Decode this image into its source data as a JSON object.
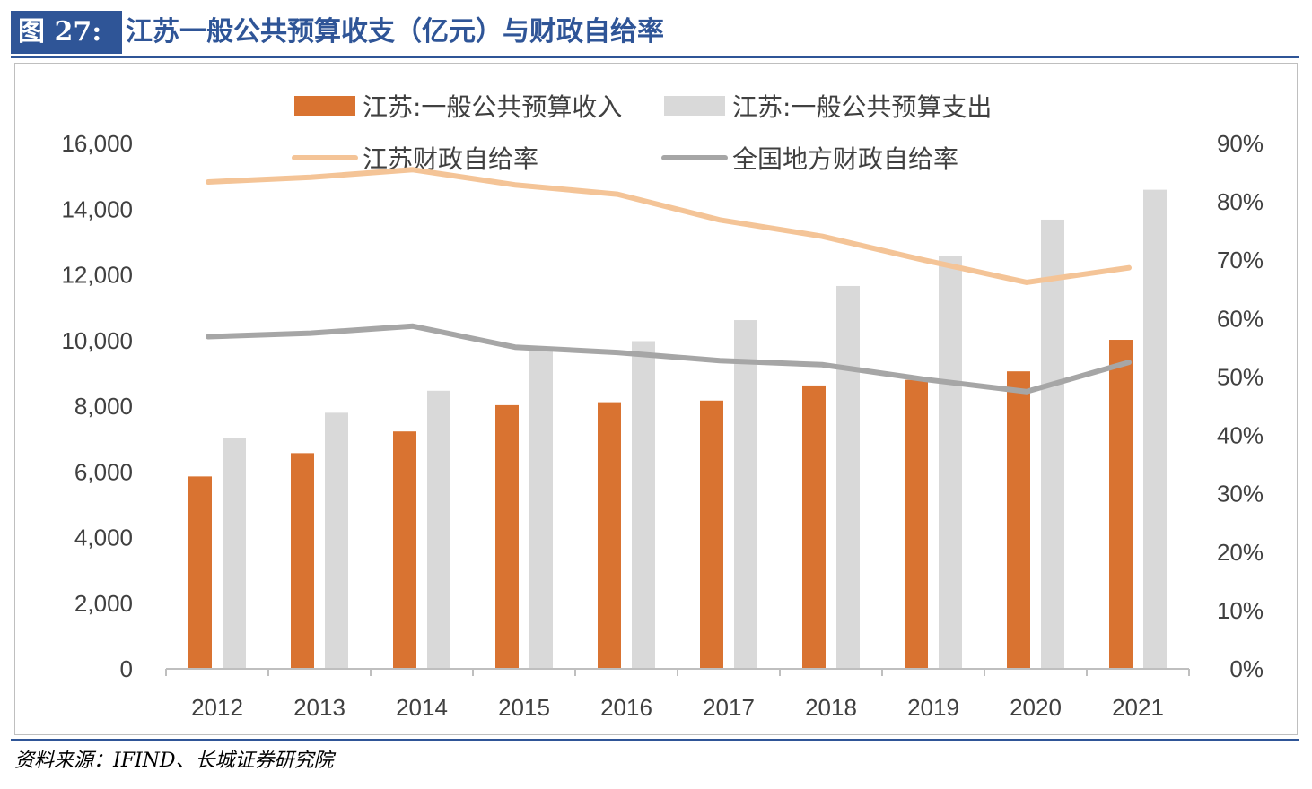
{
  "figure": {
    "label": "图 27:",
    "title": "江苏一般公共预算收支（亿元）与财政自给率",
    "source": "资料来源：IFIND、长城证券研究院"
  },
  "colors": {
    "title_blue": "#2f5597",
    "revenue_bar": "#d97331",
    "expenditure_bar": "#d9d9d9",
    "jiangsu_ratio_line": "#f4c497",
    "national_ratio_line": "#a6a6a6",
    "axis_text": "#404040"
  },
  "chart_data": {
    "type": "bar",
    "categories": [
      "2012",
      "2013",
      "2014",
      "2015",
      "2016",
      "2017",
      "2018",
      "2019",
      "2020",
      "2021"
    ],
    "series": [
      {
        "name": "江苏:一般公共预算收入",
        "kind": "bar",
        "axis": "left",
        "color": "#d97331",
        "values": [
          5860,
          6570,
          7230,
          8030,
          8120,
          8170,
          8630,
          8800,
          9060,
          10020
        ]
      },
      {
        "name": "江苏:一般公共预算支出",
        "kind": "bar",
        "axis": "left",
        "color": "#d9d9d9",
        "values": [
          7030,
          7800,
          8470,
          9690,
          9980,
          10620,
          11660,
          12570,
          13680,
          14590
        ]
      },
      {
        "name": "江苏财政自给率",
        "kind": "line",
        "axis": "right",
        "color": "#f4c497",
        "values": [
          0.834,
          0.842,
          0.855,
          0.829,
          0.813,
          0.769,
          0.741,
          0.7,
          0.662,
          0.687
        ]
      },
      {
        "name": "全国地方财政自给率",
        "kind": "line",
        "axis": "right",
        "color": "#a6a6a6",
        "values": [
          0.569,
          0.575,
          0.587,
          0.551,
          0.542,
          0.528,
          0.521,
          0.496,
          0.475,
          0.525
        ]
      }
    ],
    "y_left": {
      "range": [
        0,
        16000
      ],
      "ticks": [
        "0",
        "2,000",
        "4,000",
        "6,000",
        "8,000",
        "10,000",
        "12,000",
        "14,000",
        "16,000"
      ]
    },
    "y_right": {
      "range": [
        0,
        0.9
      ],
      "ticks": [
        "0%",
        "10%",
        "20%",
        "30%",
        "40%",
        "50%",
        "60%",
        "70%",
        "80%",
        "90%"
      ]
    },
    "legend_position": "top",
    "grid": false
  }
}
